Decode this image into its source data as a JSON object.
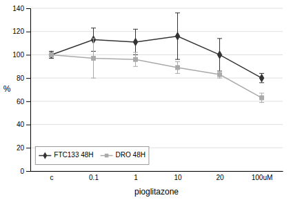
{
  "chart_data": {
    "type": "line",
    "categories": [
      "c",
      "0.1",
      "1",
      "10",
      "20",
      "100uM"
    ],
    "series": [
      {
        "name": "FTC133 48H",
        "color": "#333333",
        "marker": "diamond",
        "values": [
          100,
          113,
          111,
          116,
          100,
          80
        ],
        "errors": [
          3,
          10,
          11,
          20,
          14,
          4
        ]
      },
      {
        "name": "DRO 48H",
        "color": "#aaaaaa",
        "marker": "square",
        "values": [
          100,
          97,
          96,
          89,
          83,
          63
        ],
        "errors": [
          2,
          17,
          6,
          5,
          3,
          4
        ]
      }
    ],
    "xlabel": "pioglitazone",
    "ylabel": "%",
    "ylim": [
      0,
      140
    ],
    "yticks": [
      0,
      20,
      40,
      60,
      80,
      100,
      120,
      140
    ],
    "grid": true,
    "legend": "lower left"
  }
}
